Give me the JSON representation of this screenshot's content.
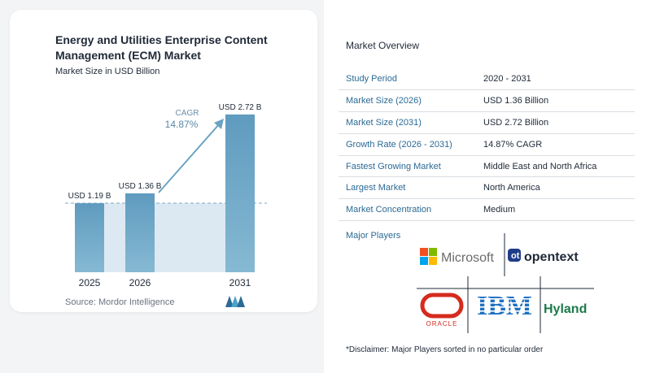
{
  "chart_data": {
    "type": "bar",
    "title": "Energy and Utilities Enterprise Content Management (ECM) Market",
    "subtitle": "Market Size in USD Billion",
    "categories": [
      "2025",
      "2026",
      "2031"
    ],
    "values": [
      1.19,
      1.36,
      2.72
    ],
    "value_labels": [
      "USD 1.19 B",
      "USD 1.36 B",
      "USD 2.72 B"
    ],
    "cagr_label": "CAGR",
    "cagr_value": "14.87%",
    "ylim": [
      0,
      2.9
    ],
    "colors": {
      "bar": "#5f9bbf",
      "bar_light": "#86b9d3",
      "band": "#dde9f2",
      "arrow": "#6aa3c4"
    }
  },
  "source": "Source:  Mordor Intelligence",
  "overview": {
    "title": "Market Overview",
    "rows": [
      {
        "key": "Study Period",
        "value": "2020 - 2031"
      },
      {
        "key": "Market Size (2026)",
        "value": "USD 1.36 Billion"
      },
      {
        "key": "Market Size (2031)",
        "value": "USD 2.72 Billion"
      },
      {
        "key": "Growth Rate (2026 - 2031)",
        "value": "14.87% CAGR"
      },
      {
        "key": "Fastest Growing Market",
        "value": "Middle East and North Africa"
      },
      {
        "key": "Largest Market",
        "value": "North America"
      },
      {
        "key": "Market Concentration",
        "value": "Medium"
      }
    ]
  },
  "players": {
    "title": "Major Players",
    "logos": [
      "Microsoft",
      "opentext",
      "ORACLE",
      "IBM",
      "Hyland"
    ]
  },
  "disclaimer": "*Disclaimer: Major Players sorted in no particular order"
}
